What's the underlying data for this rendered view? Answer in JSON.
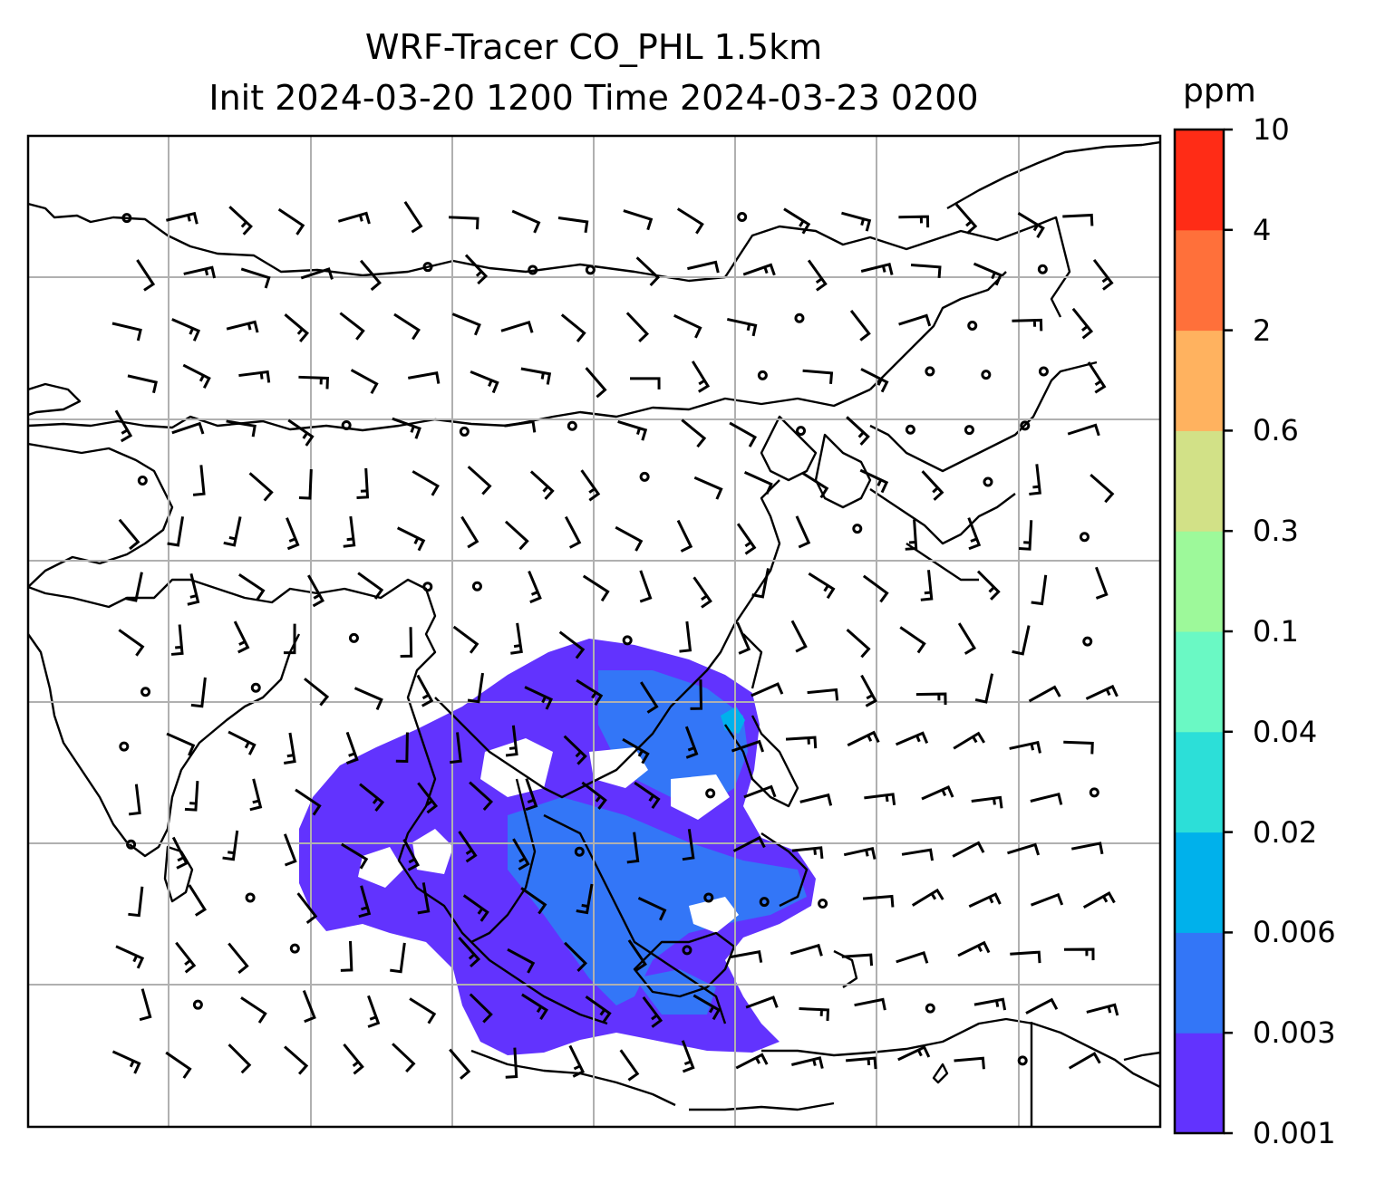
{
  "title": {
    "line1": "WRF-Tracer CO_PHL 1.5km",
    "line2": "Init 2024-03-20 1200 Time 2024-03-23 0200"
  },
  "colorbar": {
    "unit": "ppm",
    "levels": [
      "0.001",
      "0.003",
      "0.006",
      "0.02",
      "0.04",
      "0.1",
      "0.3",
      "0.6",
      "2",
      "4",
      "10"
    ],
    "colors": [
      "#6233FE",
      "#3376F7",
      "#00B1EB",
      "#2CDFD8",
      "#6AF9C4",
      "#9DF99A",
      "#D2E187",
      "#FFB25F",
      "#FF703A",
      "#FF2C16"
    ]
  },
  "map": {
    "field": "CO tracer concentration",
    "plume_colors": [
      "#6233FE",
      "#3376F7",
      "#00B1EB"
    ],
    "grid": true,
    "wind_barbs": true
  }
}
